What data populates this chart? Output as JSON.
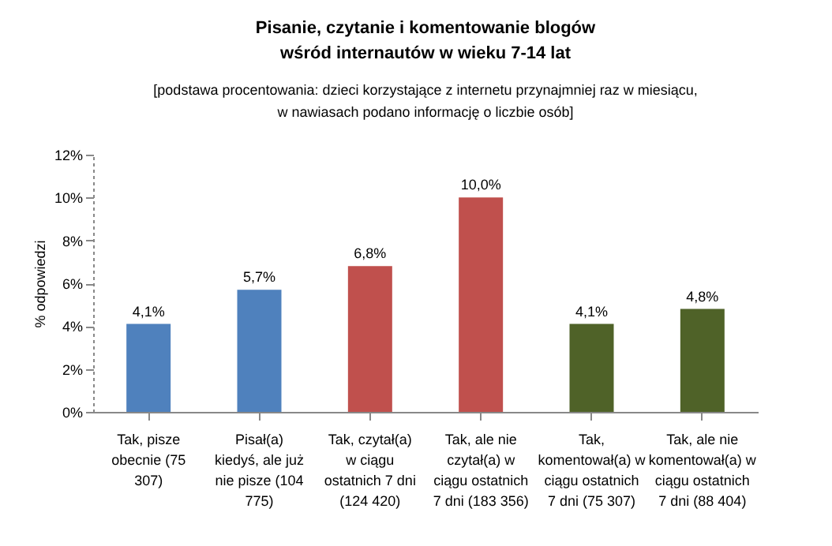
{
  "chart_data": {
    "type": "bar",
    "title": "Pisanie, czytanie i komentowanie blogów\nwśród internautów w wieku 7-14 lat",
    "subtitle": "[podstawa procentowania: dzieci korzystające z internetu przynajmniej raz w miesiącu,\nw nawiasach podano informację o liczbie osób]",
    "ylabel": "% odpowiedzi",
    "categories": [
      "Tak, pisze obecnie (75 307)",
      "Pisał(a) kiedyś, ale już nie pisze (104 775)",
      "Tak, czytał(a) w ciągu ostatnich 7 dni (124 420)",
      "Tak, ale nie czytał(a) w ciągu ostatnich 7 dni (183 356)",
      "Tak, komentował(a) w ciągu ostatnich 7 dni (75 307)",
      "Tak, ale nie komentował(a) w ciągu ostatnich 7 dni (88 404)"
    ],
    "values": [
      4.1,
      5.7,
      6.8,
      10.0,
      4.1,
      4.8
    ],
    "value_labels": [
      "4,1%",
      "5,7%",
      "6,8%",
      "10,0%",
      "4,1%",
      "4,8%"
    ],
    "colors": [
      "#4f81bd",
      "#4f81bd",
      "#c0504d",
      "#c0504d",
      "#4f6228",
      "#4f6228"
    ],
    "ylim": [
      0,
      12
    ],
    "yticks": [
      {
        "value": 0,
        "label": "0%"
      },
      {
        "value": 2,
        "label": "2%"
      },
      {
        "value": 4,
        "label": "4%"
      },
      {
        "value": 6,
        "label": "6%"
      },
      {
        "value": 8,
        "label": "8%"
      },
      {
        "value": 10,
        "label": "10%"
      },
      {
        "value": 12,
        "label": "12%"
      }
    ],
    "grid": false,
    "legend": false
  }
}
